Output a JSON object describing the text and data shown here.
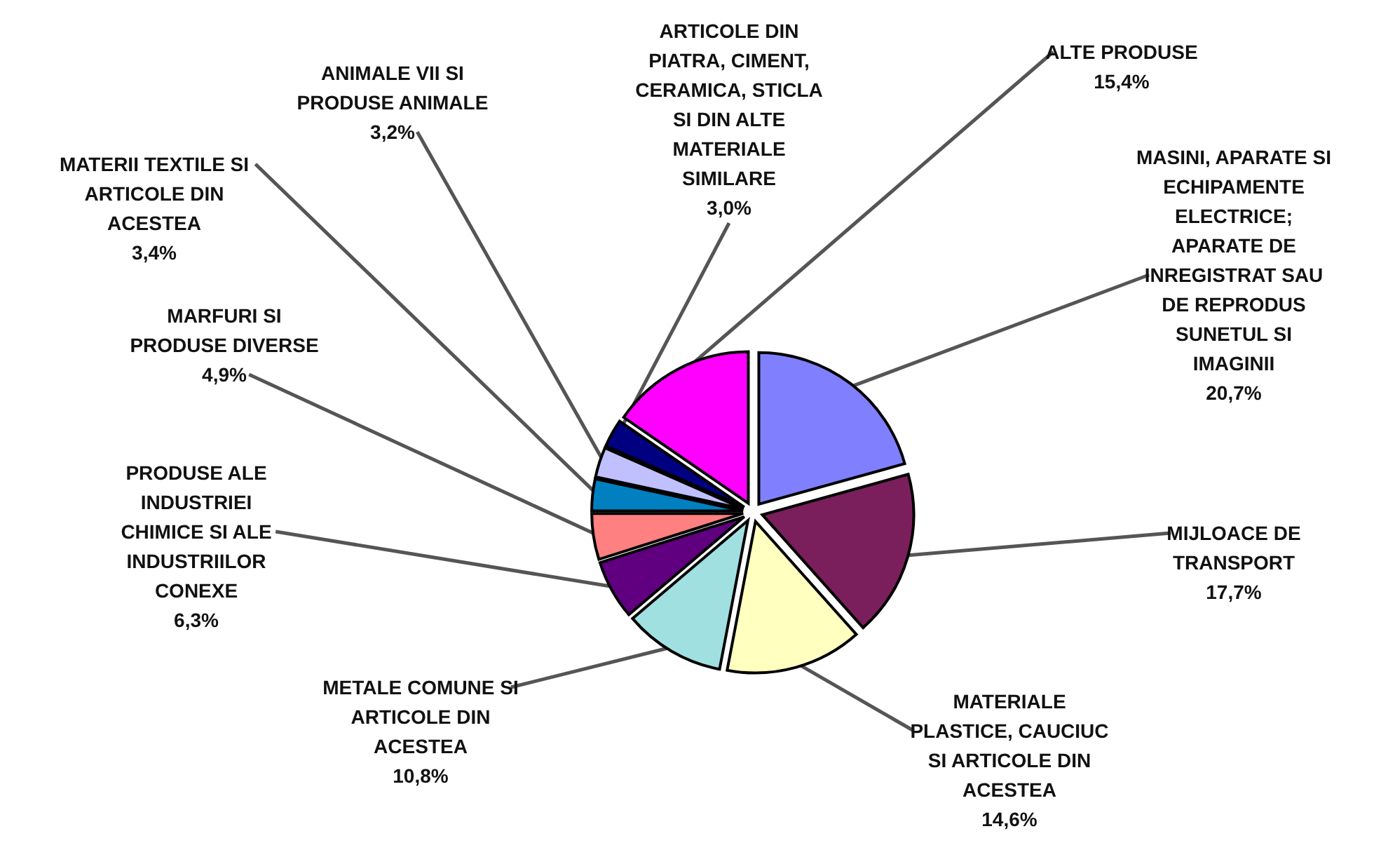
{
  "chart_data": {
    "type": "pie",
    "categories": [
      "MASINI, APARATE SI ECHIPAMENTE ELECTRICE; APARATE DE INREGISTRAT SAU DE REPRODUS SUNETUL SI IMAGINII",
      "MIJLOACE DE TRANSPORT",
      "MATERIALE PLASTICE, CAUCIUC SI ARTICOLE DIN ACESTEA",
      "METALE COMUNE SI ARTICOLE DIN ACESTEA",
      "PRODUSE ALE INDUSTRIEI CHIMICE SI ALE INDUSTRIILOR CONEXE",
      "MARFURI SI PRODUSE DIVERSE",
      "MATERII TEXTILE SI ARTICOLE DIN ACESTEA",
      "ANIMALE VII SI PRODUSE ANIMALE",
      "ARTICOLE DIN PIATRA, CIMENT, CERAMICA, STICLA SI DIN ALTE MATERIALE SIMILARE",
      "ALTE PRODUSE"
    ],
    "values": [
      20.7,
      17.7,
      14.6,
      10.8,
      6.3,
      4.9,
      3.4,
      3.2,
      3.0,
      15.4
    ],
    "value_labels": [
      "20,7%",
      "17,7%",
      "14,6%",
      "10,8%",
      "6,3%",
      "4,9%",
      "3,4%",
      "3,2%",
      "3,0%",
      "15,4%"
    ],
    "colors": [
      "#8080ff",
      "#7a1f5c",
      "#ffffc0",
      "#a0e0e0",
      "#600080",
      "#ff8080",
      "#0080c0",
      "#c0c0ff",
      "#000080",
      "#ff00ff"
    ]
  }
}
